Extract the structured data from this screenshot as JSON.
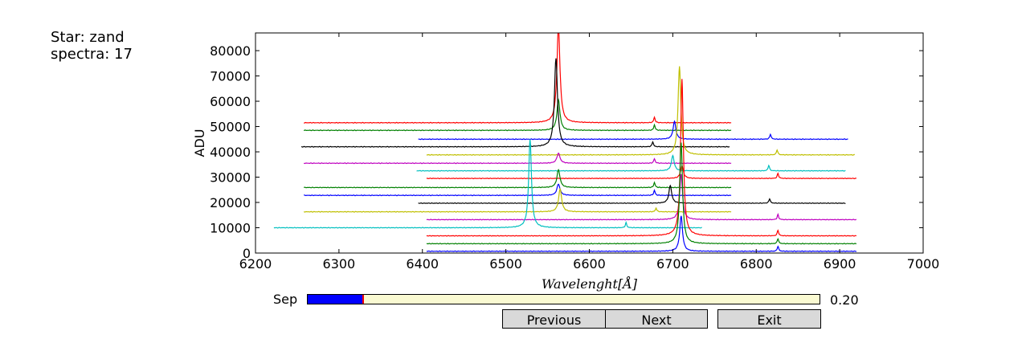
{
  "info": {
    "star": "Star: zand",
    "spectra": "spectra: 17"
  },
  "chart_data": {
    "type": "line",
    "xlabel": "Wavelenght[Å]",
    "ylabel": "ADU",
    "xlim": [
      6200,
      7000
    ],
    "ylim": [
      0,
      87000
    ],
    "xticks": [
      6200,
      6300,
      6400,
      6500,
      6600,
      6700,
      6800,
      6900,
      7000
    ],
    "yticks": [
      0,
      10000,
      20000,
      30000,
      40000,
      50000,
      60000,
      70000,
      80000
    ],
    "grid": false,
    "series": [
      {
        "color": "#ff0000",
        "baseline": 51500,
        "xmin": 6258,
        "xmax": 6770,
        "lines": [
          [
            6563,
            38000,
            2.2
          ],
          [
            6678,
            2200,
            1.0
          ]
        ]
      },
      {
        "color": "#008000",
        "baseline": 48500,
        "xmin": 6258,
        "xmax": 6770,
        "lines": [
          [
            6563,
            12000,
            2.2
          ],
          [
            6678,
            2200,
            1.0
          ]
        ]
      },
      {
        "color": "#0000ff",
        "baseline": 45000,
        "xmin": 6395,
        "xmax": 6910,
        "lines": [
          [
            6702,
            7000,
            2.0
          ],
          [
            6817,
            2000,
            1.0
          ]
        ]
      },
      {
        "color": "#000000",
        "baseline": 42000,
        "xmin": 6255,
        "xmax": 6768,
        "lines": [
          [
            6560,
            35000,
            2.2
          ],
          [
            6676,
            2000,
            1.0
          ]
        ]
      },
      {
        "color": "#bfbf00",
        "baseline": 38800,
        "xmin": 6405,
        "xmax": 6918,
        "lines": [
          [
            6708,
            35000,
            2.0
          ],
          [
            6825,
            2000,
            1.0
          ]
        ]
      },
      {
        "color": "#bf00bf",
        "baseline": 35500,
        "xmin": 6258,
        "xmax": 6770,
        "lines": [
          [
            6563,
            4000,
            2.2
          ],
          [
            6678,
            1800,
            1.0
          ]
        ]
      },
      {
        "color": "#00bfbf",
        "baseline": 32500,
        "xmin": 6393,
        "xmax": 6907,
        "lines": [
          [
            6700,
            6000,
            2.0
          ],
          [
            6815,
            2200,
            1.0
          ]
        ]
      },
      {
        "color": "#ff0000",
        "baseline": 29500,
        "xmin": 6405,
        "xmax": 6920,
        "lines": [
          [
            6711,
            5000,
            2.0
          ],
          [
            6826,
            2000,
            1.0
          ]
        ]
      },
      {
        "color": "#008000",
        "baseline": 25900,
        "xmin": 6258,
        "xmax": 6770,
        "lines": [
          [
            6563,
            7000,
            2.2
          ],
          [
            6678,
            2000,
            1.0
          ]
        ]
      },
      {
        "color": "#0000ff",
        "baseline": 22800,
        "xmin": 6258,
        "xmax": 6770,
        "lines": [
          [
            6563,
            4500,
            2.2
          ],
          [
            6678,
            2000,
            1.0
          ]
        ]
      },
      {
        "color": "#000000",
        "baseline": 19700,
        "xmin": 6395,
        "xmax": 6907,
        "lines": [
          [
            6697,
            7000,
            2.0
          ],
          [
            6816,
            1800,
            1.0
          ]
        ]
      },
      {
        "color": "#bfbf00",
        "baseline": 16300,
        "xmin": 6258,
        "xmax": 6770,
        "lines": [
          [
            6565,
            9000,
            2.2
          ],
          [
            6680,
            1500,
            1.0
          ]
        ]
      },
      {
        "color": "#bf00bf",
        "baseline": 13200,
        "xmin": 6405,
        "xmax": 6920,
        "lines": [
          [
            6710,
            18000,
            2.0
          ],
          [
            6826,
            2000,
            1.0
          ]
        ]
      },
      {
        "color": "#00bfbf",
        "baseline": 10000,
        "xmin": 6222,
        "xmax": 6735,
        "lines": [
          [
            6529,
            35000,
            2.0
          ],
          [
            6644,
            2000,
            1.0
          ]
        ]
      },
      {
        "color": "#ff0000",
        "baseline": 6800,
        "xmin": 6405,
        "xmax": 6920,
        "lines": [
          [
            6711,
            62000,
            2.0
          ],
          [
            6826,
            2200,
            1.0
          ]
        ]
      },
      {
        "color": "#008000",
        "baseline": 3700,
        "xmin": 6405,
        "xmax": 6920,
        "lines": [
          [
            6710,
            40000,
            2.0
          ],
          [
            6826,
            2000,
            1.0
          ]
        ]
      },
      {
        "color": "#0000ff",
        "baseline": 700,
        "xmin": 6405,
        "xmax": 6920,
        "lines": [
          [
            6710,
            14000,
            2.0
          ],
          [
            6826,
            2000,
            1.0
          ]
        ]
      }
    ]
  },
  "controls": {
    "sep_label": "Sep",
    "sep_value": "0.20",
    "sep_fraction": 0.11,
    "prev_label": "Previous",
    "next_label": "Next",
    "exit_label": "Exit"
  }
}
